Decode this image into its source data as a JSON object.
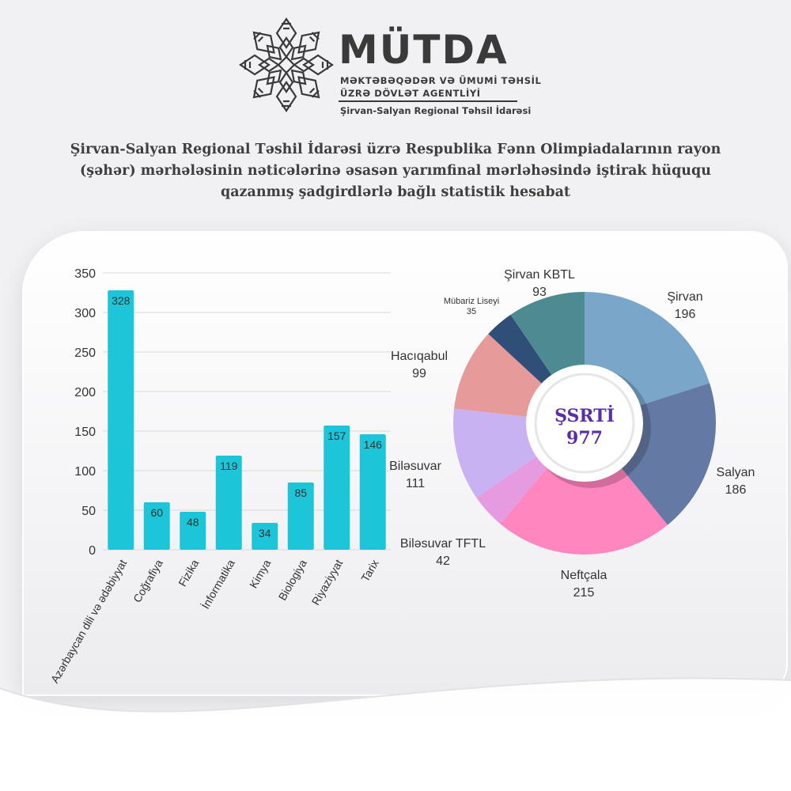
{
  "header": {
    "logo_name": "MÜTDA",
    "logo_line1": "MƏKTƏBƏQƏDƏR VƏ ÜMUMİ TƏHSİL",
    "logo_line2": "ÜZRƏ DÖVLƏT AGENTLİYİ",
    "logo_sub": "Şirvan-Salyan Regional Təhsil İdarəsi"
  },
  "report_title": "Şirvan-Salyan Regional Təshil İdarəsi üzrə Respublika Fənn Olimpiadalarının rayon (şəhər) mərhələsinin nəticələrinə əsasən yarımfinal mərləhəsində iştirak hüququ qazanmış şadgirdlərlə bağlı statistik hesabat",
  "colors": {
    "bar": "#1cc6d8",
    "grid": "#d9d9dc",
    "axis_text": "#333333",
    "center_text": "#5a2ea6",
    "logo": "#3a3a3a"
  },
  "chart_data": [
    {
      "type": "bar",
      "categories": [
        "Azərbaycan dili və ədəbiyyat",
        "Coğrafiya",
        "Fizika",
        "İnformatika",
        "Kimya",
        "Biologiya",
        "Riyaziyyat",
        "Tarix"
      ],
      "values": [
        328,
        60,
        48,
        119,
        34,
        85,
        157,
        146
      ],
      "ylim": [
        0,
        350
      ],
      "yticks": [
        0,
        50,
        100,
        150,
        200,
        250,
        300,
        350
      ],
      "grid": true,
      "title": "",
      "xlabel": "",
      "ylabel": ""
    },
    {
      "type": "pie",
      "donut": true,
      "center_title": "ŞSRTİ",
      "center_value": "977",
      "slices": [
        {
          "label": "Şirvan",
          "value": 196,
          "color": "#7aa7c9"
        },
        {
          "label": "Salyan",
          "value": 186,
          "color": "#6479a3"
        },
        {
          "label": "Neftçala",
          "value": 215,
          "color": "#ff86bf"
        },
        {
          "label": "Biləsuvar TFTL",
          "value": 42,
          "color": "#e69be0"
        },
        {
          "label": "Biləsuvar",
          "value": 111,
          "color": "#c9b2f2"
        },
        {
          "label": "Hacıqabul",
          "value": 99,
          "color": "#e69a9a"
        },
        {
          "label": "Mübariz Liseyi",
          "value": 35,
          "color": "#2f4e78"
        },
        {
          "label": "Şirvan KBTL",
          "value": 93,
          "color": "#4e8a92"
        }
      ]
    }
  ]
}
